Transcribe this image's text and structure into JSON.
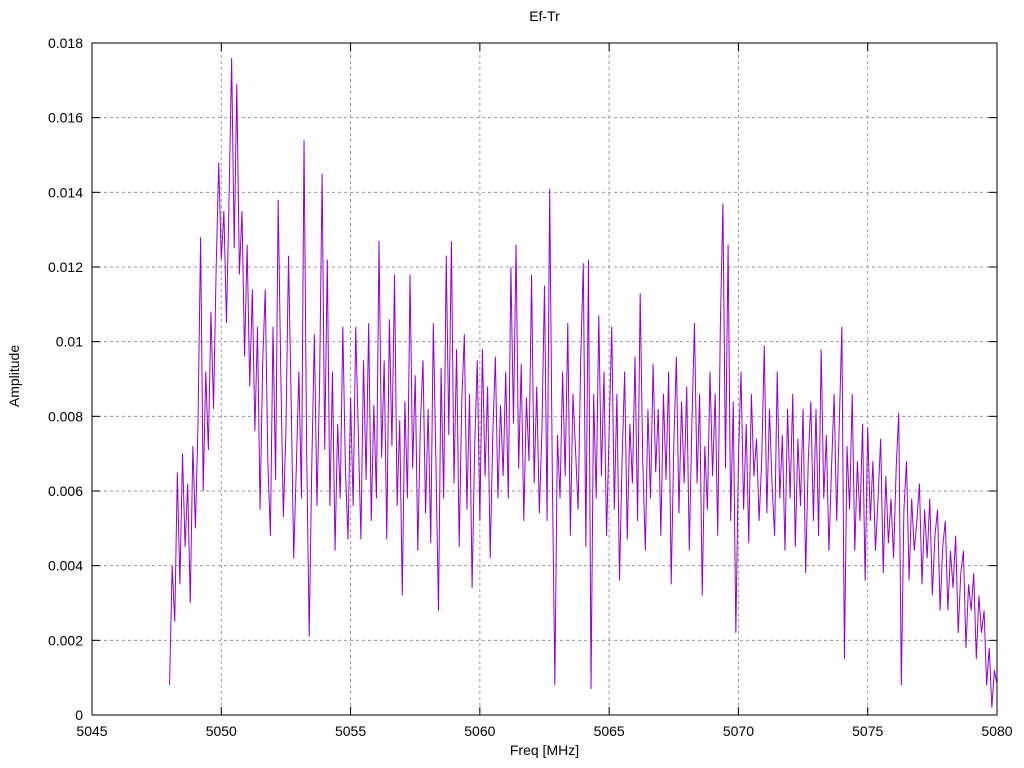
{
  "page": {
    "background": "#ffffff"
  },
  "chart_data": {
    "type": "line",
    "title": "Ef-Tr",
    "xlabel": "Freq [MHz]",
    "ylabel": "Amplitude",
    "xlim": [
      5045,
      5080
    ],
    "ylim": [
      0,
      0.018
    ],
    "x_tick_values": [
      5045,
      5050,
      5055,
      5060,
      5065,
      5070,
      5075,
      5080
    ],
    "x_tick_labels": [
      "5045",
      "5050",
      "5055",
      "5060",
      "5065",
      "5070",
      "5075",
      "5080"
    ],
    "y_tick_values": [
      0,
      0.002,
      0.004,
      0.006,
      0.008,
      0.01,
      0.012,
      0.014,
      0.016,
      0.018
    ],
    "y_tick_labels": [
      "0",
      "0.002",
      "0.004",
      "0.006",
      "0.008",
      "0.01",
      "0.012",
      "0.014",
      "0.016",
      "0.018"
    ],
    "grid": {
      "show": true,
      "style": "dashed",
      "color": "#9a9a9a"
    },
    "legend": "none",
    "border_color": "#000000",
    "line_color": "#9400D3",
    "series": [
      {
        "name": "Ef-Tr",
        "x_start": 5048.0,
        "x_step": 0.1,
        "values": [
          0.0008,
          0.004,
          0.0025,
          0.0065,
          0.0035,
          0.007,
          0.0045,
          0.0062,
          0.003,
          0.0072,
          0.005,
          0.0078,
          0.0128,
          0.006,
          0.0092,
          0.0071,
          0.0108,
          0.0082,
          0.0119,
          0.0148,
          0.0122,
          0.0135,
          0.0105,
          0.0138,
          0.0176,
          0.0125,
          0.0169,
          0.0118,
          0.0135,
          0.0096,
          0.0126,
          0.0088,
          0.0114,
          0.0076,
          0.0104,
          0.0055,
          0.0094,
          0.0114,
          0.0068,
          0.0048,
          0.0104,
          0.0063,
          0.0138,
          0.0092,
          0.0053,
          0.0076,
          0.0123,
          0.0085,
          0.0042,
          0.0066,
          0.0092,
          0.0058,
          0.0154,
          0.0072,
          0.0021,
          0.0067,
          0.0102,
          0.0056,
          0.0088,
          0.0145,
          0.0071,
          0.0122,
          0.0056,
          0.0092,
          0.0044,
          0.0078,
          0.0058,
          0.0104,
          0.0066,
          0.0047,
          0.0085,
          0.0056,
          0.0104,
          0.0075,
          0.0047,
          0.0095,
          0.0063,
          0.0105,
          0.0052,
          0.0083,
          0.0058,
          0.0127,
          0.0069,
          0.0095,
          0.0047,
          0.0106,
          0.0072,
          0.0118,
          0.0056,
          0.0079,
          0.0032,
          0.0084,
          0.0058,
          0.0118,
          0.0066,
          0.0091,
          0.0044,
          0.0078,
          0.0095,
          0.0054,
          0.0082,
          0.0046,
          0.0105,
          0.0068,
          0.0028,
          0.0093,
          0.0058,
          0.0123,
          0.0075,
          0.0127,
          0.0062,
          0.0098,
          0.0045,
          0.0084,
          0.0102,
          0.0055,
          0.0086,
          0.0034,
          0.0072,
          0.0095,
          0.0052,
          0.0098,
          0.0064,
          0.0088,
          0.0042,
          0.0075,
          0.0096,
          0.0058,
          0.0083,
          0.0064,
          0.0092,
          0.0058,
          0.012,
          0.0078,
          0.0126,
          0.0066,
          0.0094,
          0.0052,
          0.0085,
          0.0068,
          0.0118,
          0.0062,
          0.0088,
          0.0054,
          0.0076,
          0.0115,
          0.0052,
          0.0141,
          0.0066,
          0.0008,
          0.0075,
          0.0058,
          0.0092,
          0.0064,
          0.0105,
          0.0048,
          0.0086,
          0.0071,
          0.0055,
          0.0095,
          0.0121,
          0.0045,
          0.0122,
          0.0007,
          0.0086,
          0.0058,
          0.0107,
          0.0064,
          0.0092,
          0.0048,
          0.0076,
          0.0104,
          0.0055,
          0.0086,
          0.0036,
          0.0068,
          0.0092,
          0.0047,
          0.0078,
          0.0062,
          0.0096,
          0.0052,
          0.0113,
          0.0068,
          0.0044,
          0.0082,
          0.0058,
          0.0094,
          0.0065,
          0.0082,
          0.0048,
          0.0086,
          0.0063,
          0.0092,
          0.0035,
          0.0072,
          0.0096,
          0.0054,
          0.0084,
          0.0062,
          0.0088,
          0.0044,
          0.0078,
          0.0105,
          0.0062,
          0.0086,
          0.0032,
          0.0072,
          0.0055,
          0.0092,
          0.0064,
          0.0086,
          0.0048,
          0.0104,
          0.0137,
          0.0066,
          0.0126,
          0.0052,
          0.0084,
          0.0022,
          0.0068,
          0.0092,
          0.0055,
          0.0078,
          0.0046,
          0.0086,
          0.0064,
          0.0074,
          0.0052,
          0.0068,
          0.0099,
          0.0054,
          0.0082,
          0.0062,
          0.0048,
          0.0092,
          0.0058,
          0.0075,
          0.0044,
          0.0082,
          0.0058,
          0.0086,
          0.0045,
          0.0074,
          0.0056,
          0.0082,
          0.0038,
          0.0068,
          0.0084,
          0.0052,
          0.0082,
          0.0048,
          0.0098,
          0.0058,
          0.0075,
          0.0044,
          0.0066,
          0.0086,
          0.0052,
          0.0078,
          0.0104,
          0.0015,
          0.0072,
          0.0055,
          0.0086,
          0.0044,
          0.0068,
          0.0052,
          0.0078,
          0.0036,
          0.0077,
          0.0052,
          0.0068,
          0.0044,
          0.0058,
          0.0074,
          0.0038,
          0.0064,
          0.0046,
          0.0058,
          0.0042,
          0.0066,
          0.0081,
          0.0008,
          0.0055,
          0.0068,
          0.0036,
          0.0058,
          0.0044,
          0.0052,
          0.0062,
          0.0035,
          0.0055,
          0.0042,
          0.0058,
          0.0032,
          0.0048,
          0.0055,
          0.0028,
          0.0045,
          0.0052,
          0.0028,
          0.0044,
          0.0034,
          0.0048,
          0.0022,
          0.0038,
          0.0044,
          0.0018,
          0.0035,
          0.0028,
          0.0038,
          0.0015,
          0.0032,
          0.0022,
          0.0028,
          0.0008,
          0.0018,
          0.0002,
          0.0012,
          0.0008
        ]
      }
    ]
  }
}
